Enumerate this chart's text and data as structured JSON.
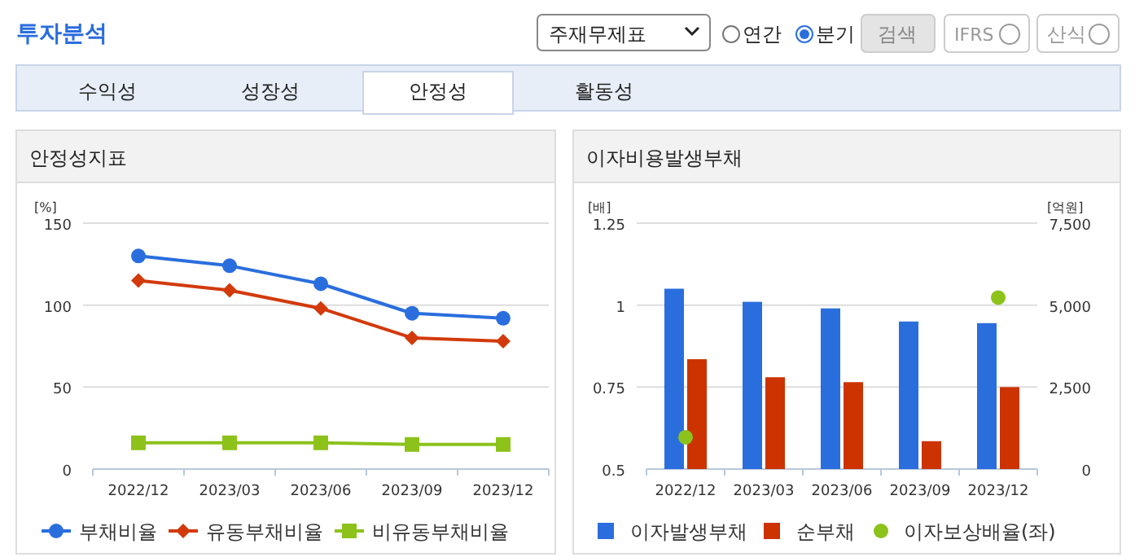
{
  "chart_data": [
    {
      "type": "other",
      "title": "투자분석",
      "annotations": [
        "주재무제표",
        "연간",
        "분기",
        "검색",
        "IFRS",
        "산식",
        "수익성",
        "성장성",
        "안정성",
        "활동성"
      ]
    },
    {
      "type": "line",
      "title": "안정성지표",
      "ylabel": "[%]",
      "categories": [
        "2022/12",
        "2023/03",
        "2023/06",
        "2023/09",
        "2023/12"
      ],
      "ylim": [
        0,
        150
      ],
      "yticks": [
        0,
        50,
        100,
        150
      ],
      "grid": "y",
      "legend": "bottom",
      "series": [
        {
          "name": "부채비율",
          "color": "#2a6ede",
          "marker": "circle",
          "values": [
            130,
            124,
            113,
            95,
            92
          ]
        },
        {
          "name": "유동부채비율",
          "color": "#d23a0b",
          "marker": "diamond",
          "values": [
            115,
            109,
            98,
            80,
            78
          ]
        },
        {
          "name": "비유동부채비율",
          "color": "#8cc21a",
          "marker": "square",
          "values": [
            16,
            16,
            16,
            15,
            15
          ]
        }
      ]
    },
    {
      "type": "bar",
      "title": "이자비용발생부채",
      "ylabel": "[배]",
      "y2label": "[억원]",
      "categories": [
        "2022/12",
        "2023/03",
        "2023/06",
        "2023/09",
        "2023/12"
      ],
      "ylim": [
        0.5,
        1.25
      ],
      "yticks": [
        0.5,
        0.75,
        1,
        1.25
      ],
      "y2lim": [
        0,
        7500
      ],
      "y2ticks": [
        {
          "value": 0,
          "label": "0"
        },
        {
          "value": 2500,
          "label": "2,500"
        },
        {
          "value": 5000,
          "label": "5,000"
        },
        {
          "value": 7500,
          "label": "7,500"
        }
      ],
      "grid": "y",
      "legend": "bottom",
      "series": [
        {
          "name": "이자발생부채",
          "type": "bar",
          "axis": "y2",
          "color": "#2a6ede",
          "values": [
            5500,
            5100,
            4900,
            4500,
            4450
          ]
        },
        {
          "name": "순부채",
          "type": "bar",
          "axis": "y2",
          "color": "#cc3300",
          "values": [
            3350,
            2800,
            2650,
            850,
            2500
          ]
        },
        {
          "name": "이자보상배율(좌)",
          "type": "scatter",
          "axis": "y",
          "marker": "circle",
          "color": "#8cc21a",
          "values": [
            0.597,
            null,
            null,
            null,
            1.023
          ]
        }
      ]
    }
  ]
}
